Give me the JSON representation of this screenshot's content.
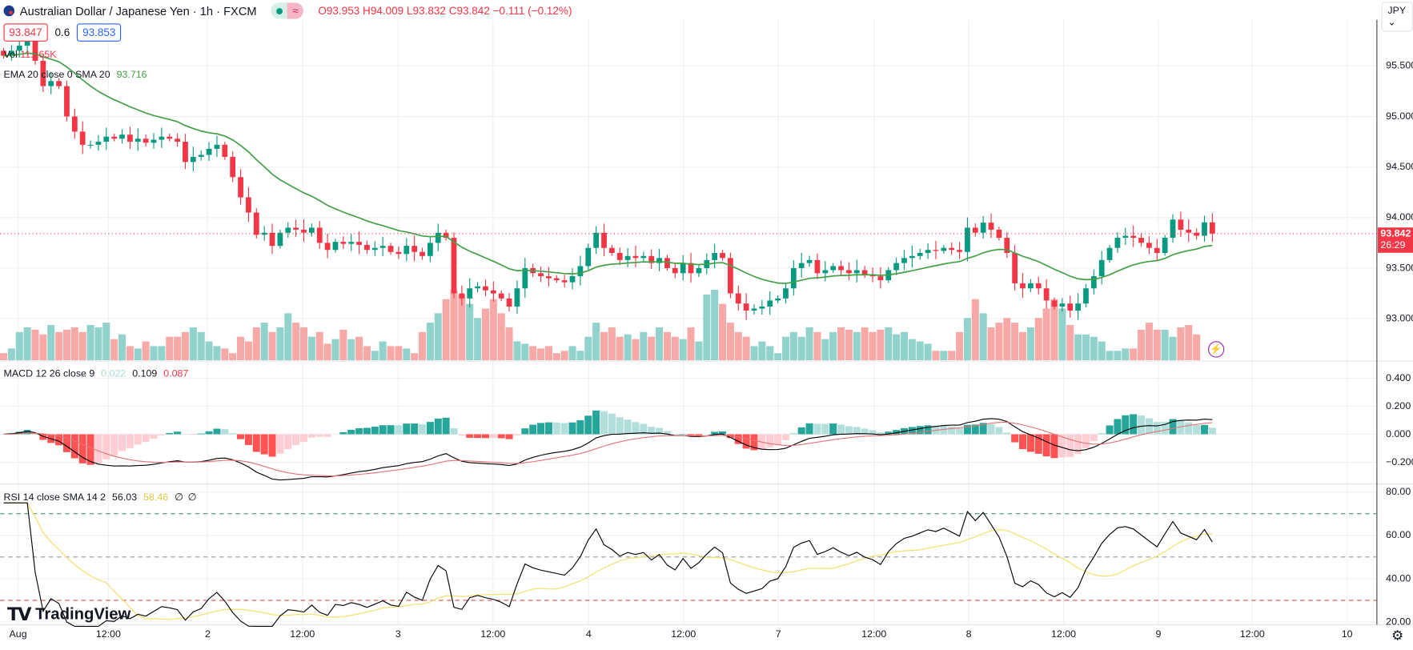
{
  "header": {
    "title": "Australian Dollar / Japanese Yen · 1h · FXCM",
    "approx_badge": "≈",
    "open": "O93.953",
    "high": "H94.009",
    "low": "L93.832",
    "close": "C93.842",
    "change": "−0.111 (−0.12%)",
    "sell_price": "93.847",
    "spread": "0.6",
    "buy_price": "93.853"
  },
  "currency_selector": "JPY ⌄",
  "legends": {
    "volume": {
      "label": "Vol",
      "value": "11.165K"
    },
    "ema": {
      "label": "EMA 20 close 0 SMA 20",
      "value": "93.716"
    },
    "macd": {
      "label": "MACD 12 26 close 9",
      "hist": "0.022",
      "macd": "0.109",
      "signal": "0.087"
    },
    "rsi": {
      "label": "RSI 14 close SMA 14 2",
      "rsi": "56.03",
      "sma": "58.46",
      "extra1": "∅",
      "extra2": "∅"
    }
  },
  "price_tag": {
    "price": "93.842",
    "countdown": "26:29"
  },
  "logo": "TradingView",
  "icons": {
    "flag": "australia-flag-icon",
    "bolt": "lightning-icon",
    "settings": "gear-icon"
  },
  "colors": {
    "up": "#089981",
    "down": "#f23645",
    "ema": "#43a047",
    "macd": "#000000",
    "signal": "#e57373",
    "rsi": "#000000",
    "rsi_sma": "#f5e27a"
  },
  "chart_data": {
    "type": "candlestick",
    "title": "Australian Dollar / Japanese Yen · 1h · FXCM",
    "interval": "1h",
    "x_tick_labels": [
      "Aug",
      "12:00",
      "2",
      "12:00",
      "3",
      "12:00",
      "4",
      "12:00",
      "7",
      "12:00",
      "8",
      "12:00",
      "9",
      "12:00",
      "10"
    ],
    "price_axis": {
      "ticks": [
        "95.500",
        "95.000",
        "94.500",
        "94.000",
        "93.500",
        "93.000"
      ],
      "range": [
        92.55,
        95.9
      ]
    },
    "macd_axis": {
      "ticks": [
        "0.400",
        "0.200",
        "0.000",
        "−0.200"
      ],
      "range": [
        -0.35,
        0.5
      ]
    },
    "rsi_axis": {
      "ticks": [
        "80.00",
        "60.00",
        "40.00",
        "20.00"
      ],
      "range": [
        17,
        83
      ],
      "bands": [
        70,
        50,
        30
      ]
    },
    "close": [
      95.6,
      95.65,
      95.7,
      95.75,
      95.55,
      95.3,
      95.35,
      95.3,
      95.0,
      94.85,
      94.72,
      94.72,
      94.75,
      94.8,
      94.78,
      94.82,
      94.75,
      94.78,
      94.74,
      94.77,
      94.8,
      94.78,
      94.75,
      94.55,
      94.6,
      94.62,
      94.68,
      94.72,
      94.6,
      94.4,
      94.2,
      94.05,
      93.83,
      93.85,
      93.72,
      93.85,
      93.9,
      93.88,
      93.85,
      93.9,
      93.75,
      93.68,
      93.76,
      93.74,
      93.76,
      93.73,
      93.68,
      93.7,
      93.72,
      93.66,
      93.64,
      93.72,
      93.66,
      93.62,
      93.75,
      93.85,
      93.8,
      93.25,
      93.2,
      93.3,
      93.32,
      93.28,
      93.25,
      93.2,
      93.12,
      93.3,
      93.5,
      93.45,
      93.42,
      93.4,
      93.38,
      93.36,
      93.42,
      93.52,
      93.7,
      93.85,
      93.7,
      93.65,
      93.58,
      93.62,
      93.6,
      93.62,
      93.55,
      93.6,
      93.5,
      93.45,
      93.55,
      93.45,
      93.5,
      93.58,
      93.65,
      93.6,
      93.25,
      93.15,
      93.08,
      93.1,
      93.12,
      93.18,
      93.2,
      93.3,
      93.5,
      93.55,
      93.58,
      93.45,
      93.48,
      93.52,
      93.48,
      93.45,
      93.48,
      93.44,
      93.42,
      93.38,
      93.48,
      93.55,
      93.6,
      93.62,
      93.65,
      93.68,
      93.67,
      93.7,
      93.68,
      93.66,
      93.9,
      93.85,
      93.95,
      93.88,
      93.8,
      93.65,
      93.35,
      93.3,
      93.35,
      93.3,
      93.18,
      93.12,
      93.15,
      93.08,
      93.15,
      93.3,
      93.42,
      93.58,
      93.7,
      93.8,
      93.82,
      93.8,
      93.75,
      93.7,
      93.65,
      93.8,
      93.98,
      93.88,
      93.85,
      93.82,
      93.953,
      93.842
    ],
    "volume_k": [
      3,
      5,
      12,
      14,
      13,
      11,
      15,
      12,
      13,
      14,
      12,
      15,
      14,
      16,
      9,
      11,
      6,
      5,
      8,
      6,
      6,
      10,
      10,
      12,
      14,
      12,
      8,
      6,
      5,
      3,
      10,
      8,
      14,
      16,
      12,
      14,
      20,
      16,
      14,
      10,
      12,
      7,
      9,
      13,
      9,
      10,
      6,
      4,
      8,
      6,
      6,
      5,
      3,
      12,
      16,
      20,
      26,
      30,
      28,
      24,
      18,
      22,
      26,
      20,
      14,
      8,
      7,
      6,
      5,
      6,
      3,
      4,
      6,
      4,
      10,
      16,
      12,
      14,
      10,
      11,
      9,
      12,
      10,
      14,
      12,
      10,
      9,
      14,
      8,
      28,
      30,
      24,
      16,
      12,
      10,
      6,
      8,
      6,
      3,
      10,
      12,
      10,
      14,
      12,
      9,
      12,
      14,
      13,
      12,
      14,
      12,
      13,
      14,
      11,
      12,
      9,
      8,
      7,
      4,
      4,
      4,
      12,
      18,
      26,
      20,
      14,
      16,
      18,
      16,
      12,
      14,
      18,
      22,
      26,
      22,
      15,
      11,
      11,
      10,
      8,
      4,
      4,
      5,
      5,
      13,
      16,
      13,
      13,
      10,
      14,
      15,
      11
    ]
  }
}
